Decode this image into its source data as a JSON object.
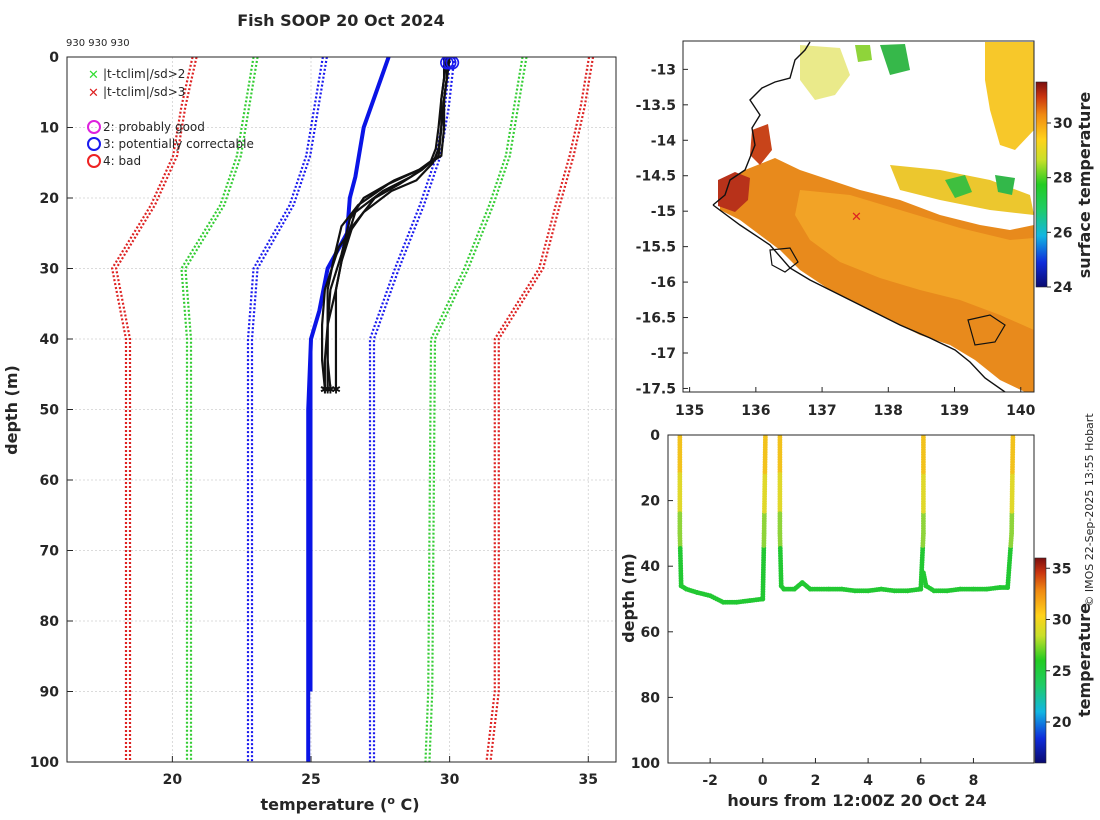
{
  "title": "Fish SOOP 20 Oct 2024",
  "top_note": "930 930 930",
  "credit": "© IMOS 22-Sep-2025 13:55 Hobart",
  "legend": {
    "items": [
      "|t-tclim|/sd>2",
      "|t-tclim|/sd>3",
      "2: probably good",
      "3: potentially correctable",
      "4: bad"
    ],
    "colors": [
      "#33dd33",
      "#dd2222",
      "#dd22dd",
      "#1a1aee",
      "#ee2222"
    ]
  },
  "chart_data": [
    {
      "type": "line",
      "id": "profile",
      "title": "Fish SOOP 20 Oct 2024",
      "xlabel": "temperature (° C)",
      "ylabel": "depth (m)",
      "xlim": [
        16.2,
        36
      ],
      "ylim": [
        100,
        0
      ],
      "xticks": [
        20,
        25,
        30,
        35
      ],
      "yticks": [
        0,
        10,
        20,
        30,
        40,
        50,
        60,
        70,
        80,
        90,
        100
      ],
      "climatology": [
        {
          "name": "red-left",
          "color": "#dd2222",
          "x": [
            20.8,
            20.4,
            20.1,
            19.3,
            17.9,
            18.4,
            18.4,
            18.4
          ],
          "y": [
            0,
            7,
            14,
            21,
            30,
            40,
            90,
            100
          ]
        },
        {
          "name": "green-left",
          "color": "#33cc33",
          "x": [
            23.0,
            22.7,
            22.4,
            21.8,
            20.4,
            20.6,
            20.6,
            20.6
          ],
          "y": [
            0,
            7,
            14,
            21,
            30,
            40,
            90,
            100
          ]
        },
        {
          "name": "blue-left",
          "color": "#1a1aee",
          "x": [
            25.5,
            25.2,
            24.9,
            24.3,
            23.0,
            22.8,
            22.8,
            22.8
          ],
          "y": [
            0,
            7,
            14,
            21,
            30,
            40,
            90,
            100
          ]
        },
        {
          "name": "blue-right",
          "color": "#1a1aee",
          "x": [
            30.1,
            29.9,
            29.6,
            29.0,
            28.1,
            27.2,
            27.2,
            27.2
          ],
          "y": [
            0,
            7,
            14,
            21,
            30,
            40,
            90,
            100
          ]
        },
        {
          "name": "green-right",
          "color": "#33cc33",
          "x": [
            32.7,
            32.4,
            32.1,
            31.5,
            30.6,
            29.4,
            29.3,
            29.2
          ],
          "y": [
            0,
            7,
            14,
            21,
            30,
            40,
            90,
            100
          ]
        },
        {
          "name": "red-right",
          "color": "#dd2222",
          "x": [
            35.1,
            34.8,
            34.4,
            33.9,
            33.3,
            31.7,
            31.7,
            31.4
          ],
          "y": [
            0,
            7,
            14,
            21,
            30,
            40,
            90,
            100
          ]
        }
      ],
      "mean_profile": {
        "color": "#0a14e6",
        "x": [
          27.8,
          26.9,
          26.6,
          26.4,
          26.3,
          25.6,
          25.3,
          25.0,
          24.9,
          24.9
        ],
        "y": [
          0,
          10,
          17,
          20,
          25,
          30,
          36,
          40,
          50,
          100
        ]
      },
      "mean_profile_b": {
        "x": [
          25.0,
          25.0
        ],
        "y": [
          40,
          90
        ]
      },
      "casts": [
        {
          "x": [
            30.0,
            29.9,
            29.8,
            29.8,
            29.7,
            28.9,
            28.0,
            26.9,
            26.4,
            26.1,
            25.7,
            25.6,
            25.6,
            25.6
          ],
          "y": [
            0,
            3,
            6,
            10,
            14,
            16,
            17.5,
            20,
            23,
            28,
            33,
            38,
            43,
            47
          ]
        },
        {
          "x": [
            29.9,
            29.9,
            29.8,
            29.7,
            29.6,
            28.9,
            27.8,
            26.7,
            26.1,
            25.8,
            25.6,
            25.6,
            25.6,
            25.7
          ],
          "y": [
            0,
            3,
            6,
            10,
            14,
            16,
            18,
            21,
            24,
            29,
            33,
            38,
            43,
            47
          ]
        },
        {
          "x": [
            29.9,
            29.8,
            29.7,
            29.6,
            29.5,
            29.3,
            28.6,
            27.6,
            26.6,
            26.2,
            25.9,
            25.9,
            25.9,
            25.9
          ],
          "y": [
            0,
            3,
            6,
            10,
            13,
            15,
            17,
            19,
            22,
            27,
            33,
            38,
            43,
            47
          ]
        },
        {
          "x": [
            30.0,
            29.9,
            29.8,
            29.7,
            29.6,
            29.4,
            28.8,
            27.9,
            26.9,
            26.0,
            25.5,
            25.4,
            25.4,
            25.5
          ],
          "y": [
            0,
            3,
            6,
            10,
            13,
            15,
            17.5,
            19,
            22,
            27,
            33,
            38,
            43,
            47
          ]
        },
        {
          "x": [
            29.8,
            29.8,
            29.7,
            29.7,
            29.6,
            29.0,
            28.2,
            27.3,
            26.5,
            26.1,
            25.9,
            25.6,
            25.5,
            25.5
          ],
          "y": [
            0,
            3,
            6,
            10,
            14,
            16,
            18,
            20,
            24,
            29,
            33,
            38,
            43,
            47
          ]
        }
      ],
      "qc_circles": {
        "color": "#1a1aee",
        "x": [
          29.9,
          30.0,
          30.1
        ],
        "y": [
          0.8,
          0.8,
          0.8
        ]
      }
    },
    {
      "type": "heatmap",
      "id": "map",
      "colorbar_label": "surface temperature",
      "xlim": [
        134.9,
        140.2
      ],
      "ylim": [
        -17.55,
        -12.6
      ],
      "xticks": [
        135,
        136,
        137,
        138,
        139,
        140
      ],
      "yticks": [
        -13,
        -13.5,
        -14,
        -14.5,
        -15,
        -15.5,
        -16,
        -16.5,
        -17,
        -17.5
      ],
      "ytick_labels": [
        "-13",
        "-13.5",
        "-14",
        "-14.5",
        "-15",
        "-15.5",
        "-16",
        "-16.5",
        "-17",
        "-17.5"
      ],
      "cbar_ticks": [
        24,
        26,
        28,
        30
      ],
      "cbar_range": [
        24,
        31.5
      ],
      "track_x": [
        137.5,
        137.6
      ],
      "track_y": [
        -15.05,
        -15.05
      ]
    },
    {
      "type": "scatter",
      "id": "timeseries",
      "xlabel": "hours from 12:00Z 20 Oct 24",
      "ylabel": "depth (m)",
      "colorbar_label": "temperature",
      "xlim": [
        -3.6,
        10.3
      ],
      "ylim": [
        100,
        0
      ],
      "xticks": [
        -2,
        0,
        2,
        4,
        6,
        8
      ],
      "yticks": [
        0,
        20,
        40,
        60,
        80,
        100
      ],
      "cbar_ticks": [
        20,
        25,
        30,
        35
      ],
      "cbar_range": [
        16,
        36
      ],
      "segments": [
        {
          "t": [
            -3.15,
            -3.15,
            -3.1,
            -2.9,
            -2.5,
            -2.0,
            -1.5,
            -1.0,
            -0.5,
            0.0,
            0.05,
            0.1
          ],
          "d": [
            0,
            30,
            46,
            47,
            48,
            49,
            51,
            51,
            50.5,
            50,
            30,
            0
          ]
        },
        {
          "t": [
            0.65,
            0.65,
            0.7,
            0.8,
            1.2,
            1.5,
            1.8,
            2.5,
            3.0,
            3.5,
            4.0,
            4.5,
            5.0,
            5.5,
            6.0,
            6.1,
            6.1
          ],
          "d": [
            0,
            30,
            46,
            47,
            47,
            45,
            47,
            47,
            47,
            47.5,
            47.5,
            47,
            47.5,
            47.5,
            47,
            30,
            0
          ]
        },
        {
          "t": [
            6.1,
            6.2,
            6.5,
            7.0,
            7.5,
            8.0,
            8.5,
            9.0,
            9.3,
            9.45,
            9.5
          ],
          "d": [
            42,
            46,
            47.5,
            47.5,
            47,
            47,
            47,
            46.5,
            46.5,
            30,
            0
          ]
        }
      ]
    }
  ]
}
